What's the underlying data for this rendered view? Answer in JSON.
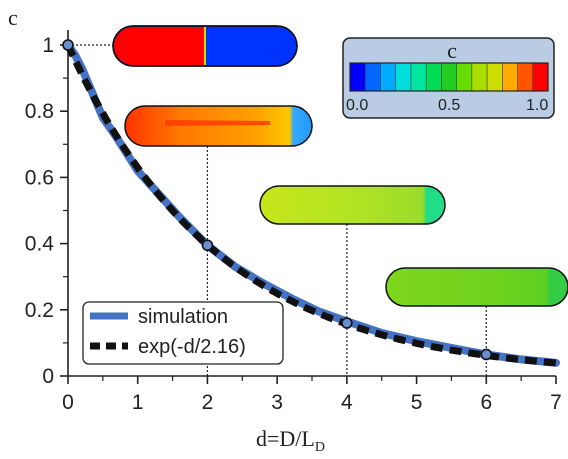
{
  "chart_data": {
    "type": "line",
    "xlabel_main": "d=D/L",
    "xlabel_sub": "D",
    "ylabel": "c",
    "xlim": [
      0,
      7
    ],
    "ylim": [
      0,
      1
    ],
    "x_ticks": [
      "0",
      "1",
      "2",
      "3",
      "4",
      "5",
      "6",
      "7"
    ],
    "y_ticks": [
      "0",
      "0.2",
      "0.4",
      "0.6",
      "0.8",
      "1"
    ],
    "grid": false,
    "legend_position": "bottom-left",
    "series": [
      {
        "name": "simulation",
        "color": "#4472c4",
        "style": "solid",
        "x": [
          0,
          0.1,
          0.2,
          0.3,
          0.4,
          0.5,
          0.7,
          1.0,
          1.3,
          1.6,
          2.0,
          2.4,
          2.8,
          3.2,
          3.6,
          4.0,
          4.5,
          5.0,
          5.5,
          6.0,
          6.5,
          7.0
        ],
        "y": [
          1.0,
          0.97,
          0.93,
          0.88,
          0.83,
          0.78,
          0.72,
          0.62,
          0.55,
          0.48,
          0.395,
          0.33,
          0.28,
          0.235,
          0.195,
          0.165,
          0.13,
          0.105,
          0.085,
          0.065,
          0.05,
          0.04
        ]
      },
      {
        "name": "exp(-d/2.16)",
        "color": "#111111",
        "style": "dashed",
        "function": "exp",
        "scale": 2.16
      }
    ],
    "markers": [
      {
        "x": 0,
        "y": 1.0
      },
      {
        "x": 2,
        "y": 0.395
      },
      {
        "x": 4,
        "y": 0.16
      },
      {
        "x": 6,
        "y": 0.065
      }
    ],
    "colorbar": {
      "title": "c",
      "labels": [
        "0.0",
        "0.5",
        "1.0"
      ],
      "colors": [
        "#0000ff",
        "#0066ff",
        "#00aaff",
        "#00dddd",
        "#00e6a0",
        "#00dd55",
        "#22cc22",
        "#66dd00",
        "#aadd00",
        "#ccdd00",
        "#ffaa00",
        "#ff5500",
        "#ff0000"
      ]
    },
    "capsules": [
      {
        "at_x": 0,
        "left_color": "#ff0000",
        "right_color": "#0033ff"
      },
      {
        "at_x": 2,
        "left_color": "#ff6a00",
        "right_color": "#4aa8ff"
      },
      {
        "at_x": 4,
        "left_color": "#b8e31a",
        "right_color": "#22e07a"
      },
      {
        "at_x": 6,
        "left_color": "#7bd31a",
        "right_color": "#37d24a"
      }
    ]
  }
}
